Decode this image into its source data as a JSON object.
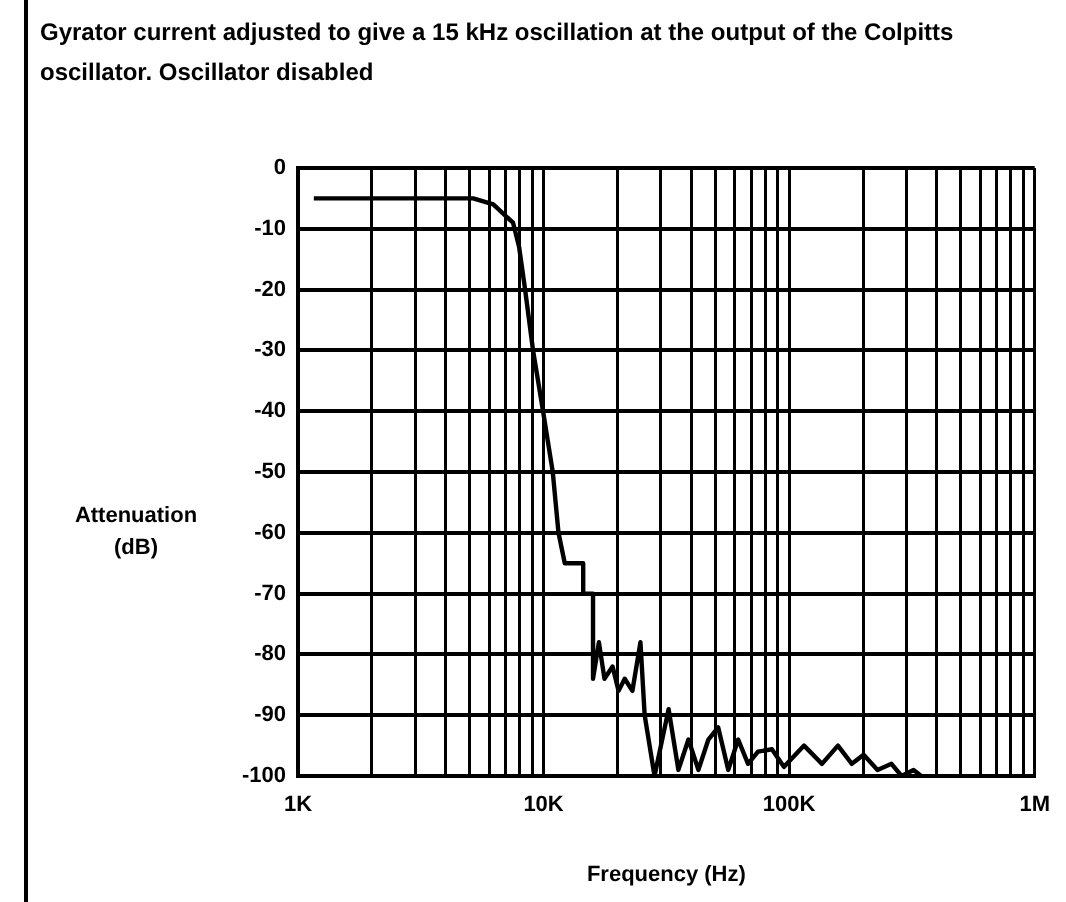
{
  "chart_data": {
    "type": "line",
    "title": "Gyrator current adjusted to give a 15 kHz oscillation at the output of the Colpitts oscillator. Oscillator disabled",
    "xlabel": "Frequency (Hz)",
    "ylabel": "Attenuation (dB)",
    "x": [
      1160,
      5170,
      6240,
      7510,
      7950,
      8410,
      9060,
      9950,
      10900,
      11500,
      12200,
      14500,
      14500,
      15900,
      15900,
      16800,
      17700,
      19100,
      20200,
      21400,
      23000,
      24800,
      25800,
      28300,
      32300,
      35400,
      38900,
      42700,
      46900,
      51400,
      56500,
      62000,
      68000,
      74700,
      85100,
      95200,
      115000,
      136000,
      158000,
      180000,
      201000,
      229000,
      261000,
      287000,
      321000,
      345000
    ],
    "series": [
      {
        "color": "#000000",
        "values": [
          -5,
          -5,
          -6,
          -9,
          -13,
          -20,
          -30,
          -40,
          -50,
          -60,
          -65,
          -65,
          -70,
          -70,
          -84,
          -78,
          -84,
          -82,
          -86,
          -84,
          -86,
          -78,
          -90,
          -100,
          -89,
          -99,
          -94,
          -99,
          -94,
          -92,
          -99,
          -94,
          -98,
          -96,
          -95.6,
          -98.5,
          -95,
          -98,
          -95,
          -98,
          -96.5,
          -99,
          -98,
          -100,
          -99,
          -100
        ]
      }
    ],
    "log": "x",
    "xlim": [
      1000,
      1000000
    ],
    "xticks": [
      {
        "value": 1000,
        "label": "1K"
      },
      {
        "value": 2000,
        "label": null
      },
      {
        "value": 3000,
        "label": null
      },
      {
        "value": 4000,
        "label": null
      },
      {
        "value": 5000,
        "label": null
      },
      {
        "value": 6000,
        "label": null
      },
      {
        "value": 7000,
        "label": null
      },
      {
        "value": 8000,
        "label": null
      },
      {
        "value": 9000,
        "label": null
      },
      {
        "value": 10000,
        "label": "10K"
      },
      {
        "value": 20000,
        "label": null
      },
      {
        "value": 30000,
        "label": null
      },
      {
        "value": 40000,
        "label": null
      },
      {
        "value": 50000,
        "label": null
      },
      {
        "value": 60000,
        "label": null
      },
      {
        "value": 70000,
        "label": null
      },
      {
        "value": 80000,
        "label": null
      },
      {
        "value": 90000,
        "label": null
      },
      {
        "value": 100000,
        "label": "100K"
      },
      {
        "value": 200000,
        "label": null
      },
      {
        "value": 300000,
        "label": null
      },
      {
        "value": 400000,
        "label": null
      },
      {
        "value": 500000,
        "label": null
      },
      {
        "value": 600000,
        "label": null
      },
      {
        "value": 700000,
        "label": null
      },
      {
        "value": 800000,
        "label": null
      },
      {
        "value": 900000,
        "label": null
      },
      {
        "value": 1000000,
        "label": "1M"
      }
    ],
    "ylim": [
      -100,
      0
    ],
    "yticks": [
      -100,
      -90,
      -80,
      -70,
      -60,
      -50,
      -40,
      -30,
      -20,
      -10,
      0
    ],
    "grid": true,
    "legend": false,
    "marker": "none",
    "line_style": "solid"
  }
}
